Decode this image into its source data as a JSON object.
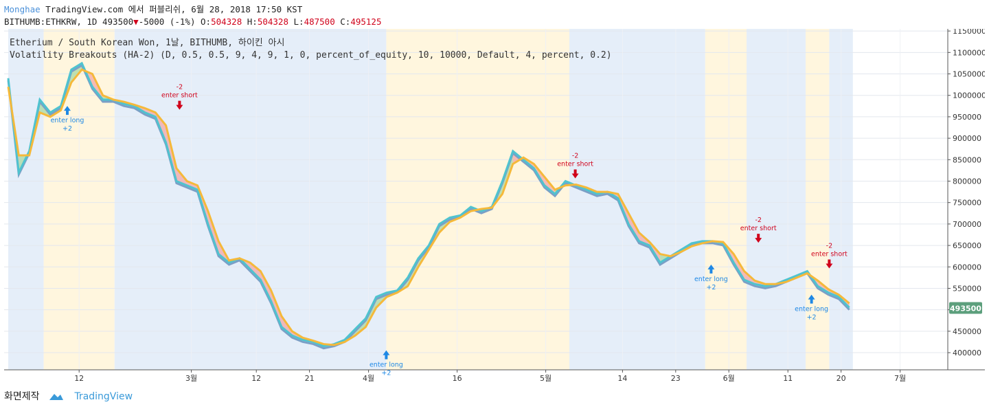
{
  "header": {
    "author": "Monghae",
    "publish_text": "TradingView.com 에서 퍼블리쉬, 6월 28, 2018 17:50 KST",
    "symbol": "BITHUMB:ETHKRW, 1D",
    "last": "493500",
    "change": "-5000 (-1%)",
    "o_label": "O:",
    "o_value": "504328",
    "h_label": "H:",
    "h_value": "504328",
    "l_label": "L:",
    "l_value": "487500",
    "c_label": "C:",
    "c_value": "495125"
  },
  "chart_title": "Etherium / South Korean Won, 1날, BITHUMB, 하이킨 아시",
  "strategy_line": "Volatility Breakouts (HA-2) (D, 0.5, 0.5, 9, 4, 9, 1, 0, percent_of_equity, 10, 10000, Default, 4, percent, 0.2)",
  "price_badge": "493500",
  "footer": {
    "left_text": "화면제작",
    "brand": "TradingView"
  },
  "colors": {
    "bg_blue": "#e5eef9",
    "bg_yellow": "#fff6de",
    "fast_line": "#4fc3cf",
    "slow_line": "#f5b93a",
    "mid_line": "#7b9fc6",
    "badge": "#5c9f7c",
    "long_marker": "#1e88e5",
    "short_marker": "#d0021b"
  },
  "chart_data": {
    "type": "line",
    "y_ticks": [
      400000,
      450000,
      500000,
      550000,
      600000,
      650000,
      700000,
      750000,
      800000,
      850000,
      900000,
      950000,
      1000000,
      1050000,
      1100000,
      1150000
    ],
    "ylim": [
      360000,
      1155000
    ],
    "x_ticks": [
      {
        "label": "12",
        "day": 12
      },
      {
        "label": "3월",
        "day": 31
      },
      {
        "label": "12",
        "day": 42
      },
      {
        "label": "21",
        "day": 51
      },
      {
        "label": "4월",
        "day": 61
      },
      {
        "label": "16",
        "day": 76
      },
      {
        "label": "5월",
        "day": 91
      },
      {
        "label": "14",
        "day": 104
      },
      {
        "label": "23",
        "day": 113
      },
      {
        "label": "6월",
        "day": 122
      },
      {
        "label": "11",
        "day": 132
      },
      {
        "label": "20",
        "day": 141
      },
      {
        "label": "7월",
        "day": 151
      }
    ],
    "series": [
      {
        "values": [
          1040000,
          820000,
          870000,
          990000,
          960000,
          975000,
          1060000,
          1075000,
          1020000,
          990000,
          990000,
          980000,
          975000,
          960000,
          950000,
          890000,
          800000,
          790000,
          780000,
          700000,
          630000,
          610000,
          620000,
          595000,
          570000,
          520000,
          460000,
          440000,
          430000,
          425000,
          415000,
          420000,
          430000,
          455000,
          480000,
          530000,
          540000,
          545000,
          575000,
          620000,
          650000,
          700000,
          715000,
          720000,
          740000,
          730000,
          740000,
          800000,
          870000,
          850000,
          830000,
          790000,
          770000,
          800000,
          790000,
          780000,
          770000,
          775000,
          760000,
          700000,
          660000,
          650000,
          610000,
          625000,
          640000,
          655000,
          660000,
          660000,
          655000,
          610000,
          570000,
          560000,
          555000,
          560000,
          570000,
          580000,
          590000,
          555000,
          540000,
          530000,
          505000
        ]
      },
      {
        "values": [
          1020000,
          860000,
          860000,
          960000,
          950000,
          965000,
          1030000,
          1060000,
          1050000,
          1000000,
          990000,
          985000,
          978000,
          970000,
          960000,
          930000,
          830000,
          800000,
          790000,
          730000,
          660000,
          615000,
          620000,
          610000,
          590000,
          545000,
          485000,
          450000,
          435000,
          428000,
          420000,
          418000,
          425000,
          440000,
          460000,
          505000,
          530000,
          540000,
          555000,
          600000,
          640000,
          680000,
          705000,
          715000,
          730000,
          735000,
          738000,
          770000,
          840000,
          855000,
          840000,
          810000,
          780000,
          790000,
          792000,
          785000,
          775000,
          775000,
          770000,
          725000,
          680000,
          658000,
          630000,
          625000,
          635000,
          648000,
          655000,
          660000,
          658000,
          630000,
          590000,
          568000,
          560000,
          560000,
          565000,
          575000,
          585000,
          568000,
          548000,
          535000,
          515000
        ]
      }
    ]
  }
}
